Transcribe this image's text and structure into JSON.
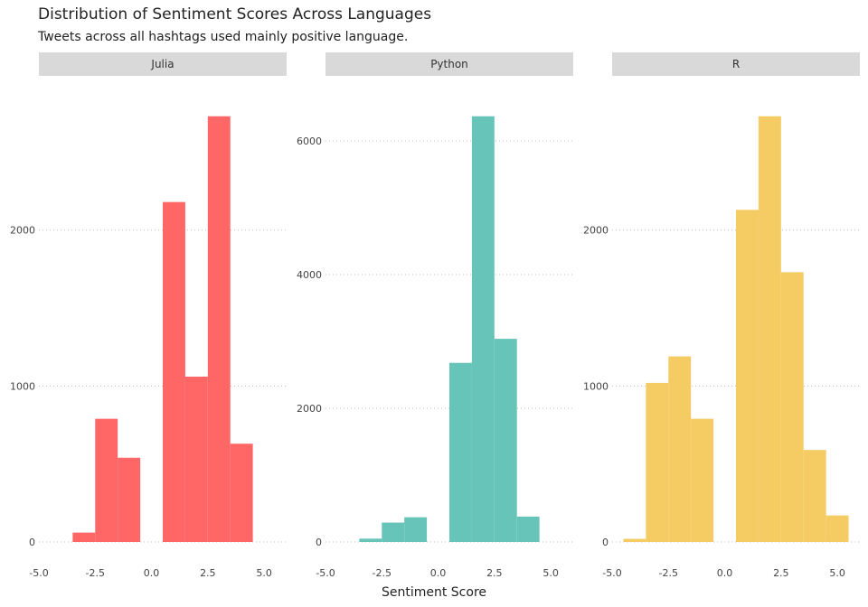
{
  "title": "Distribution of Sentiment Scores Across Languages",
  "subtitle": "Tweets across all hashtags used mainly positive language.",
  "xlabel": "Sentiment Score",
  "chart_data": {
    "type": "bar",
    "title": "Distribution of Sentiment Scores Across Languages",
    "subtitle": "Tweets across all hashtags used mainly positive language.",
    "xlabel": "Sentiment Score",
    "ylabel": "",
    "xlim": [
      -5,
      6
    ],
    "x_ticks": [
      -5,
      -2.5,
      0,
      2.5,
      5
    ],
    "x_tick_labels": [
      "-5.0",
      "-2.5",
      "0.0",
      "2.5",
      "5.0"
    ],
    "grid": "horizontal-dotted",
    "bin_width": 1,
    "facets": [
      {
        "name": "Julia",
        "color": "#FF6666",
        "ylim": [
          0,
          2850
        ],
        "y_ticks": [
          0,
          1000,
          2000
        ],
        "bins": [
          {
            "x": [
              -3.5,
              -2.5
            ],
            "count": 60
          },
          {
            "x": [
              -2.5,
              -1.5
            ],
            "count": 790
          },
          {
            "x": [
              -1.5,
              -0.5
            ],
            "count": 540
          },
          {
            "x": [
              0.5,
              1.5
            ],
            "count": 2180
          },
          {
            "x": [
              1.5,
              2.5
            ],
            "count": 1060
          },
          {
            "x": [
              2.5,
              3.5
            ],
            "count": 2730
          },
          {
            "x": [
              3.5,
              4.5
            ],
            "count": 630
          }
        ]
      },
      {
        "name": "Python",
        "color": "#66C5B8",
        "ylim": [
          0,
          6650
        ],
        "y_ticks": [
          0,
          2000,
          4000,
          6000
        ],
        "bins": [
          {
            "x": [
              -3.5,
              -2.5
            ],
            "count": 50
          },
          {
            "x": [
              -2.5,
              -1.5
            ],
            "count": 290
          },
          {
            "x": [
              -1.5,
              -0.5
            ],
            "count": 370
          },
          {
            "x": [
              0.5,
              1.5
            ],
            "count": 2680
          },
          {
            "x": [
              1.5,
              2.5
            ],
            "count": 6370
          },
          {
            "x": [
              2.5,
              3.5
            ],
            "count": 3040
          },
          {
            "x": [
              3.5,
              4.5
            ],
            "count": 380
          }
        ]
      },
      {
        "name": "R",
        "color": "#F5CB63",
        "ylim": [
          0,
          2850
        ],
        "y_ticks": [
          0,
          1000,
          2000
        ],
        "bins": [
          {
            "x": [
              -4.5,
              -3.5
            ],
            "count": 20
          },
          {
            "x": [
              -3.5,
              -2.5
            ],
            "count": 1020
          },
          {
            "x": [
              -2.5,
              -1.5
            ],
            "count": 1190
          },
          {
            "x": [
              -1.5,
              -0.5
            ],
            "count": 790
          },
          {
            "x": [
              0.5,
              1.5
            ],
            "count": 2130
          },
          {
            "x": [
              1.5,
              2.5
            ],
            "count": 2730
          },
          {
            "x": [
              2.5,
              3.5
            ],
            "count": 1730
          },
          {
            "x": [
              3.5,
              4.5
            ],
            "count": 590
          },
          {
            "x": [
              4.5,
              5.5
            ],
            "count": 170
          }
        ]
      }
    ]
  }
}
